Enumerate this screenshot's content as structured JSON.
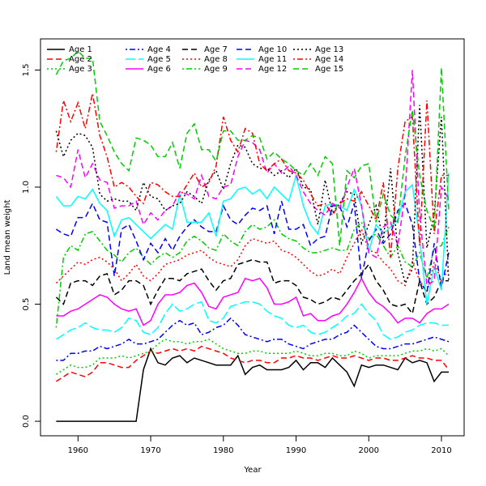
{
  "chart_data": {
    "type": "line",
    "x_label": "Year",
    "y_label": "Land mean weight",
    "xlim": [
      1954.84,
      2013.12
    ],
    "ylim": [
      -0.062,
      1.633
    ],
    "xticks": [
      1960,
      1970,
      1980,
      1990,
      2000,
      2010
    ],
    "yticks": [
      {
        "value": 0,
        "label": "0.0"
      },
      0.5,
      {
        "value": 1,
        "label": "1.0"
      },
      1.5
    ],
    "legend": "top-left",
    "x": [
      1957,
      1958,
      1959,
      1960,
      1961,
      1962,
      1963,
      1964,
      1965,
      1966,
      1967,
      1968,
      1969,
      1970,
      1971,
      1972,
      1973,
      1974,
      1975,
      1976,
      1977,
      1978,
      1979,
      1980,
      1981,
      1982,
      1983,
      1984,
      1985,
      1986,
      1987,
      1988,
      1989,
      1990,
      1991,
      1992,
      1993,
      1994,
      1995,
      1996,
      1997,
      1998,
      1999,
      2000,
      2001,
      2002,
      2003,
      2004,
      2005,
      2006,
      2007,
      2008,
      2009,
      2010,
      2011
    ],
    "series": [
      {
        "name": "Age 1",
        "color": "#000000",
        "linestyle": "solid",
        "values": [
          0,
          0,
          0,
          0,
          0,
          0,
          0,
          0,
          0,
          0,
          0,
          0,
          0.22,
          0.31,
          0.25,
          0.24,
          0.27,
          0.28,
          0.25,
          0.27,
          0.26,
          0.25,
          0.24,
          0.24,
          0.24,
          0.28,
          0.2,
          0.23,
          0.24,
          0.22,
          0.22,
          0.22,
          0.23,
          0.26,
          0.22,
          0.25,
          0.25,
          0.23,
          0.27,
          0.24,
          0.21,
          0.15,
          0.24,
          0.23,
          0.24,
          0.24,
          0.23,
          0.22,
          0.27,
          0.25,
          0.26,
          0.25,
          0.17,
          0.21,
          0.21
        ]
      },
      {
        "name": "Age 2",
        "color": "#ff0000",
        "linestyle": "dashed",
        "values": [
          0.17,
          0.19,
          0.21,
          0.2,
          0.19,
          0.21,
          0.25,
          0.25,
          0.24,
          0.23,
          0.23,
          0.26,
          0.28,
          0.3,
          0.29,
          0.3,
          0.31,
          0.3,
          0.31,
          0.3,
          0.32,
          0.31,
          0.3,
          0.29,
          0.27,
          0.26,
          0.25,
          0.26,
          0.26,
          0.25,
          0.25,
          0.27,
          0.27,
          0.28,
          0.27,
          0.27,
          0.26,
          0.27,
          0.28,
          0.27,
          0.27,
          0.28,
          0.27,
          0.26,
          0.27,
          0.27,
          0.26,
          0.26,
          0.27,
          0.28,
          0.27,
          0.27,
          0.26,
          0.26,
          0.22
        ]
      },
      {
        "name": "Age 3",
        "color": "#00cd00",
        "linestyle": "dotted",
        "values": [
          0.2,
          0.22,
          0.24,
          0.23,
          0.23,
          0.24,
          0.27,
          0.27,
          0.27,
          0.28,
          0.27,
          0.28,
          0.29,
          0.3,
          0.33,
          0.35,
          0.34,
          0.34,
          0.33,
          0.34,
          0.34,
          0.35,
          0.33,
          0.31,
          0.3,
          0.29,
          0.29,
          0.3,
          0.3,
          0.29,
          0.29,
          0.29,
          0.29,
          0.3,
          0.29,
          0.28,
          0.28,
          0.29,
          0.29,
          0.28,
          0.28,
          0.3,
          0.29,
          0.27,
          0.28,
          0.28,
          0.28,
          0.28,
          0.29,
          0.3,
          0.3,
          0.31,
          0.3,
          0.31,
          0.28
        ]
      },
      {
        "name": "Age 4",
        "color": "#0000ff",
        "linestyle": "dotdash",
        "values": [
          0.26,
          0.26,
          0.29,
          0.29,
          0.3,
          0.3,
          0.32,
          0.31,
          0.32,
          0.33,
          0.35,
          0.33,
          0.33,
          0.34,
          0.35,
          0.38,
          0.41,
          0.43,
          0.41,
          0.42,
          0.37,
          0.38,
          0.4,
          0.41,
          0.44,
          0.41,
          0.37,
          0.36,
          0.35,
          0.34,
          0.35,
          0.35,
          0.33,
          0.32,
          0.31,
          0.33,
          0.34,
          0.35,
          0.35,
          0.37,
          0.38,
          0.41,
          0.38,
          0.35,
          0.32,
          0.31,
          0.31,
          0.32,
          0.33,
          0.33,
          0.34,
          0.35,
          0.36,
          0.35,
          0.34
        ]
      },
      {
        "name": "Age 5",
        "color": "#00ffff",
        "linestyle": "longdash",
        "values": [
          0.35,
          0.37,
          0.39,
          0.4,
          0.42,
          0.4,
          0.39,
          0.39,
          0.38,
          0.4,
          0.44,
          0.43,
          0.38,
          0.37,
          0.4,
          0.46,
          0.5,
          0.47,
          0.48,
          0.5,
          0.51,
          0.43,
          0.42,
          0.44,
          0.49,
          0.5,
          0.51,
          0.51,
          0.5,
          0.47,
          0.45,
          0.44,
          0.41,
          0.4,
          0.41,
          0.38,
          0.37,
          0.38,
          0.4,
          0.42,
          0.45,
          0.46,
          0.5,
          0.46,
          0.43,
          0.37,
          0.35,
          0.36,
          0.38,
          0.39,
          0.41,
          0.42,
          0.42,
          0.41,
          0.41
        ]
      },
      {
        "name": "Age 6",
        "color": "#ff00ff",
        "linestyle": "solid",
        "values": [
          0.45,
          0.45,
          0.47,
          0.48,
          0.5,
          0.52,
          0.54,
          0.53,
          0.5,
          0.48,
          0.47,
          0.48,
          0.41,
          0.43,
          0.5,
          0.54,
          0.54,
          0.55,
          0.58,
          0.59,
          0.55,
          0.49,
          0.48,
          0.53,
          0.54,
          0.55,
          0.61,
          0.6,
          0.61,
          0.57,
          0.5,
          0.5,
          0.51,
          0.53,
          0.45,
          0.46,
          0.43,
          0.43,
          0.45,
          0.46,
          0.5,
          0.55,
          0.61,
          0.55,
          0.51,
          0.49,
          0.46,
          0.42,
          0.44,
          0.44,
          0.42,
          0.46,
          0.48,
          0.48,
          0.5
        ]
      },
      {
        "name": "Age 7",
        "color": "#000000",
        "linestyle": "dashed",
        "values": [
          0.53,
          0.5,
          0.59,
          0.6,
          0.6,
          0.58,
          0.62,
          0.63,
          0.54,
          0.56,
          0.6,
          0.6,
          0.58,
          0.5,
          0.56,
          0.61,
          0.61,
          0.6,
          0.63,
          0.64,
          0.65,
          0.6,
          0.56,
          0.6,
          0.61,
          0.67,
          0.68,
          0.69,
          0.68,
          0.68,
          0.59,
          0.6,
          0.6,
          0.58,
          0.53,
          0.52,
          0.5,
          0.51,
          0.53,
          0.52,
          0.56,
          0.6,
          0.63,
          0.67,
          0.6,
          0.56,
          0.5,
          0.49,
          0.5,
          0.46,
          0.6,
          0.5,
          0.53,
          0.6,
          0.6
        ]
      },
      {
        "name": "Age 8",
        "color": "#ff0000",
        "linestyle": "dotted",
        "values": [
          0.59,
          0.62,
          0.65,
          0.68,
          0.67,
          0.69,
          0.7,
          0.68,
          0.65,
          0.6,
          0.63,
          0.67,
          0.62,
          0.6,
          0.63,
          0.67,
          0.68,
          0.69,
          0.71,
          0.72,
          0.73,
          0.7,
          0.68,
          0.67,
          0.66,
          0.69,
          0.75,
          0.78,
          0.77,
          0.76,
          0.77,
          0.73,
          0.72,
          0.7,
          0.67,
          0.64,
          0.62,
          0.63,
          0.65,
          0.63,
          0.7,
          0.76,
          0.82,
          0.73,
          0.72,
          0.68,
          0.65,
          0.6,
          0.58,
          0.68,
          0.6,
          0.55,
          0.68,
          0.6,
          0.65
        ]
      },
      {
        "name": "Age 9",
        "color": "#00cd00",
        "linestyle": "dotdash",
        "values": [
          0.4,
          0.7,
          0.75,
          0.73,
          0.8,
          0.81,
          0.77,
          0.73,
          0.71,
          0.68,
          0.72,
          0.74,
          0.7,
          0.67,
          0.7,
          0.72,
          0.7,
          0.72,
          0.77,
          0.79,
          0.77,
          0.74,
          0.73,
          0.8,
          0.77,
          0.75,
          0.81,
          0.84,
          0.82,
          0.83,
          0.86,
          0.8,
          0.78,
          0.77,
          0.74,
          0.72,
          0.72,
          0.73,
          0.74,
          0.73,
          0.73,
          0.82,
          0.85,
          0.78,
          0.8,
          0.75,
          0.7,
          0.75,
          0.68,
          0.66,
          0.72,
          0.61,
          0.74,
          0.75,
          0.83
        ]
      },
      {
        "name": "Age 10",
        "color": "#0000ff",
        "linestyle": "dashed",
        "values": [
          0.82,
          0.8,
          0.79,
          0.87,
          0.87,
          0.93,
          0.86,
          0.85,
          0.62,
          0.82,
          0.84,
          0.77,
          0.69,
          0.76,
          0.72,
          0.78,
          0.73,
          0.79,
          0.83,
          0.86,
          0.83,
          0.81,
          0.81,
          0.92,
          0.86,
          0.84,
          0.88,
          0.91,
          0.9,
          0.92,
          0.8,
          0.94,
          0.82,
          0.82,
          0.84,
          0.75,
          0.78,
          0.79,
          0.92,
          0.92,
          0.83,
          0.93,
          0.61,
          0.77,
          0.82,
          0.76,
          0.8,
          0.9,
          0.93,
          0.84,
          0.6,
          0.55,
          0.76,
          0.57,
          0.72
        ]
      },
      {
        "name": "Age 11",
        "color": "#00ffff",
        "linestyle": "solid",
        "values": [
          0.96,
          0.92,
          0.92,
          0.96,
          0.95,
          0.99,
          0.93,
          0.9,
          0.79,
          0.86,
          0.87,
          0.84,
          0.81,
          0.78,
          0.81,
          0.84,
          0.82,
          0.97,
          0.85,
          0.85,
          0.85,
          0.89,
          0.79,
          0.94,
          0.95,
          0.99,
          1.0,
          0.97,
          0.99,
          0.95,
          1.0,
          0.97,
          0.94,
          1.05,
          0.92,
          0.84,
          0.8,
          0.92,
          0.93,
          0.92,
          0.9,
          0.99,
          0.92,
          0.72,
          0.84,
          0.8,
          0.83,
          0.86,
          0.98,
          1.01,
          0.78,
          0.5,
          0.66,
          0.56,
          1.06
        ]
      },
      {
        "name": "Age 12",
        "color": "#ff00ff",
        "linestyle": "dashed",
        "values": [
          1.05,
          1.04,
          1.0,
          1.16,
          1.04,
          1.1,
          1.03,
          1.02,
          0.91,
          0.92,
          0.92,
          0.94,
          0.84,
          0.89,
          0.86,
          0.9,
          0.92,
          0.98,
          0.97,
          0.95,
          1.05,
          0.96,
          0.95,
          1.0,
          1.01,
          1.13,
          1.2,
          1.19,
          1.16,
          1.06,
          1.1,
          1.06,
          1.09,
          1.05,
          0.98,
          0.93,
          0.9,
          0.88,
          0.93,
          0.91,
          1.0,
          1.08,
          0.92,
          0.72,
          0.7,
          0.83,
          0.85,
          0.75,
          0.97,
          1.5,
          0.88,
          0.58,
          0.6,
          1.0,
          0.95
        ]
      },
      {
        "name": "Age 13",
        "color": "#000000",
        "linestyle": "dotted",
        "values": [
          1.24,
          1.13,
          1.2,
          1.23,
          1.22,
          1.17,
          0.97,
          0.94,
          0.95,
          0.94,
          0.94,
          0.9,
          1.02,
          0.96,
          0.95,
          0.9,
          0.92,
          0.93,
          0.98,
          0.96,
          0.93,
          1.03,
          1.07,
          0.99,
          1.1,
          1.18,
          1.17,
          1.1,
          1.08,
          1.08,
          1.05,
          1.07,
          1.04,
          1.08,
          1.0,
          0.99,
          0.84,
          1.03,
          0.89,
          0.93,
          0.98,
          0.97,
          0.76,
          0.84,
          0.92,
          0.77,
          1.08,
          0.72,
          0.59,
          0.65,
          1.35,
          0.74,
          0.88,
          1.3,
          0.6
        ]
      },
      {
        "name": "Age 14",
        "color": "#ff0000",
        "linestyle": "dotdash",
        "values": [
          1.15,
          1.37,
          1.28,
          1.36,
          1.25,
          1.4,
          1.22,
          1.13,
          1.0,
          1.02,
          1.0,
          0.96,
          0.93,
          1.02,
          1.01,
          0.98,
          0.96,
          0.96,
          1.01,
          1.06,
          1.0,
          1.02,
          1.09,
          1.3,
          1.2,
          1.15,
          1.25,
          1.23,
          1.1,
          1.07,
          1.1,
          1.12,
          1.07,
          1.06,
          1.03,
          0.97,
          0.92,
          0.93,
          0.88,
          0.93,
          0.95,
          0.94,
          0.98,
          0.92,
          0.86,
          1.02,
          0.7,
          1.08,
          1.28,
          1.3,
          0.75,
          1.37,
          0.8,
          1.05,
          1.05
        ]
      },
      {
        "name": "Age 15",
        "color": "#00cd00",
        "linestyle": "dashed",
        "values": [
          1.48,
          1.54,
          1.55,
          1.58,
          1.55,
          1.55,
          1.28,
          1.22,
          1.15,
          1.1,
          1.07,
          1.21,
          1.2,
          1.18,
          1.13,
          1.13,
          1.19,
          1.08,
          1.23,
          1.27,
          1.16,
          1.16,
          1.11,
          1.24,
          1.24,
          1.2,
          1.2,
          1.22,
          1.21,
          1.12,
          1.15,
          1.12,
          1.1,
          1.07,
          1.05,
          1.1,
          1.05,
          1.13,
          1.1,
          0.75,
          1.07,
          1.04,
          1.09,
          1.1,
          0.85,
          0.97,
          0.88,
          0.85,
          1.13,
          1.33,
          1.05,
          0.9,
          0.82,
          1.51,
          0.9
        ]
      }
    ]
  }
}
